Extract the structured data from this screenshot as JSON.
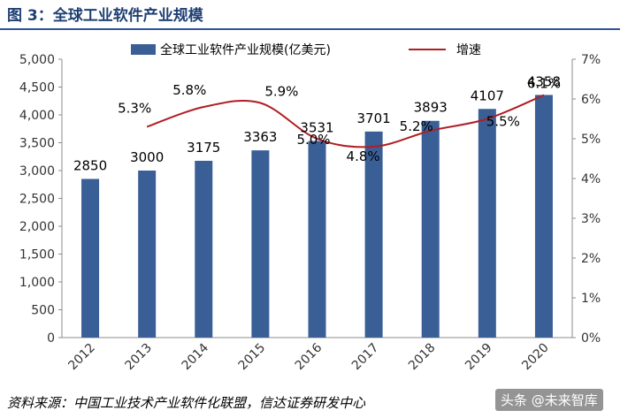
{
  "figure": {
    "title": "图 3：全球工业软件产业规模",
    "source": "资料来源：中国工业技术产业软件化联盟，信达证券研发中心",
    "watermark": "头条 @未来智库"
  },
  "colors": {
    "bar": "#3a5f96",
    "line": "#b01e23",
    "title": "#1f3f73",
    "axis_text": "#333333"
  },
  "chart_data": {
    "type": "bar",
    "categories": [
      "2012",
      "2013",
      "2014",
      "2015",
      "2016",
      "2017",
      "2018",
      "2019",
      "2020"
    ],
    "series": [
      {
        "name": "全球工业软件产业规模(亿美元)",
        "type": "bar",
        "axis": "left",
        "values": [
          2850,
          3000,
          3175,
          3363,
          3531,
          3701,
          3893,
          4107,
          4358
        ],
        "labels": [
          "2850",
          "3000",
          "3175",
          "3363",
          "3531",
          "3701",
          "3893",
          "4107",
          "4358"
        ]
      },
      {
        "name": "增速",
        "type": "line",
        "axis": "right",
        "values": [
          null,
          5.3,
          5.8,
          5.9,
          5.0,
          4.8,
          5.2,
          5.5,
          6.1
        ],
        "labels": [
          null,
          "5.3%",
          "5.8%",
          "5.9%",
          "5.0%",
          "4.8%",
          "5.2%",
          "5.5%",
          "6.1%"
        ]
      }
    ],
    "y_left": {
      "min": 0,
      "max": 5000,
      "ticks": [
        "0",
        "500",
        "1,000",
        "1,500",
        "2,000",
        "2,500",
        "3,000",
        "3,500",
        "4,000",
        "4,500",
        "5,000"
      ]
    },
    "y_right": {
      "min": 0,
      "max": 7,
      "ticks": [
        "0%",
        "1%",
        "2%",
        "3%",
        "4%",
        "5%",
        "6%",
        "7%"
      ]
    },
    "legend_position": "top",
    "grid": false
  }
}
